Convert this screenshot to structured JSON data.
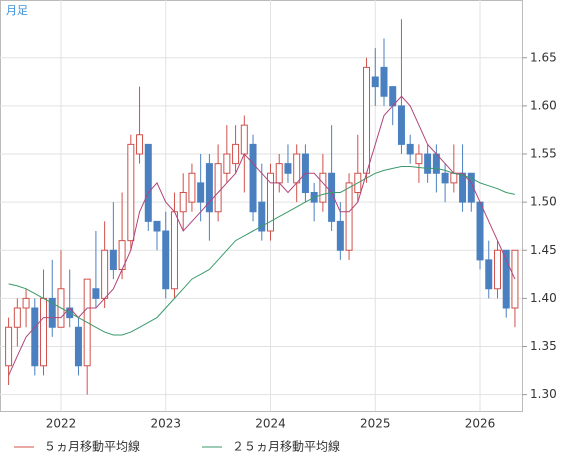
{
  "chart_data": {
    "type": "candlestick",
    "title": "月足",
    "categories": [
      null,
      null,
      null,
      null,
      null,
      null,
      "2022",
      null,
      null,
      null,
      null,
      null,
      null,
      null,
      null,
      null,
      null,
      null,
      "2023",
      null,
      null,
      null,
      null,
      null,
      null,
      null,
      null,
      null,
      null,
      null,
      "2024",
      null,
      null,
      null,
      null,
      null,
      null,
      null,
      null,
      null,
      null,
      null,
      "2025",
      null,
      null,
      null,
      null,
      null,
      null,
      null,
      null,
      null,
      null,
      null,
      "2026",
      null,
      null,
      null,
      null
    ],
    "open": [
      1.33,
      1.37,
      1.39,
      1.39,
      1.33,
      1.4,
      1.37,
      1.39,
      1.37,
      1.33,
      1.41,
      1.4,
      1.45,
      1.43,
      1.46,
      1.55,
      1.56,
      1.48,
      1.47,
      1.41,
      1.49,
      1.5,
      1.52,
      1.54,
      1.49,
      1.53,
      1.54,
      1.55,
      1.56,
      1.5,
      1.47,
      1.52,
      1.54,
      1.52,
      1.55,
      1.51,
      1.5,
      1.53,
      1.48,
      1.45,
      1.51,
      1.53,
      1.63,
      1.64,
      1.62,
      1.6,
      1.56,
      1.54,
      1.55,
      1.55,
      1.53,
      1.52,
      1.53,
      1.53,
      1.5,
      1.44,
      1.41,
      1.45,
      1.39
    ],
    "high": [
      1.38,
      1.4,
      1.41,
      1.4,
      1.43,
      1.44,
      1.45,
      1.43,
      1.38,
      1.42,
      1.47,
      1.48,
      1.5,
      1.51,
      1.57,
      1.62,
      1.56,
      1.48,
      1.49,
      1.51,
      1.53,
      1.54,
      1.55,
      1.55,
      1.56,
      1.58,
      1.58,
      1.59,
      1.57,
      1.54,
      1.54,
      1.55,
      1.56,
      1.56,
      1.56,
      1.52,
      1.55,
      1.58,
      1.5,
      1.53,
      1.57,
      1.65,
      1.66,
      1.67,
      1.62,
      1.69,
      1.57,
      1.56,
      1.56,
      1.56,
      1.54,
      1.56,
      1.56,
      1.53,
      1.5,
      1.46,
      1.46,
      1.45,
      1.45
    ],
    "low": [
      1.31,
      1.35,
      1.37,
      1.32,
      1.32,
      1.36,
      1.37,
      1.37,
      1.32,
      1.3,
      1.39,
      1.39,
      1.42,
      1.42,
      1.45,
      1.54,
      1.47,
      1.45,
      1.4,
      1.4,
      1.47,
      1.49,
      1.48,
      1.46,
      1.48,
      1.52,
      1.53,
      1.51,
      1.48,
      1.46,
      1.46,
      1.51,
      1.52,
      1.5,
      1.5,
      1.48,
      1.49,
      1.47,
      1.44,
      1.44,
      1.5,
      1.52,
      1.6,
      1.6,
      1.58,
      1.55,
      1.54,
      1.52,
      1.52,
      1.51,
      1.5,
      1.51,
      1.49,
      1.49,
      1.43,
      1.4,
      1.4,
      1.38,
      1.37
    ],
    "close": [
      1.37,
      1.39,
      1.4,
      1.33,
      1.4,
      1.37,
      1.41,
      1.38,
      1.33,
      1.42,
      1.4,
      1.45,
      1.43,
      1.46,
      1.56,
      1.57,
      1.48,
      1.47,
      1.41,
      1.49,
      1.51,
      1.53,
      1.5,
      1.49,
      1.54,
      1.55,
      1.56,
      1.58,
      1.49,
      1.47,
      1.53,
      1.54,
      1.53,
      1.55,
      1.51,
      1.5,
      1.53,
      1.48,
      1.45,
      1.52,
      1.53,
      1.64,
      1.62,
      1.61,
      1.6,
      1.56,
      1.55,
      1.55,
      1.53,
      1.53,
      1.52,
      1.53,
      1.5,
      1.5,
      1.44,
      1.41,
      1.45,
      1.39,
      1.45
    ],
    "up_color": "#d0504a",
    "down_color": "#4a80c0",
    "series": [
      {
        "name": "５ヵ月移動平均線",
        "color": "#b0457a",
        "values": [
          1.32,
          1.34,
          1.36,
          1.37,
          1.38,
          1.38,
          1.38,
          1.39,
          1.38,
          1.39,
          1.39,
          1.4,
          1.41,
          1.43,
          1.45,
          1.49,
          1.51,
          1.52,
          1.5,
          1.49,
          1.47,
          1.48,
          1.49,
          1.5,
          1.51,
          1.52,
          1.53,
          1.55,
          1.54,
          1.53,
          1.52,
          1.52,
          1.51,
          1.52,
          1.53,
          1.53,
          1.52,
          1.51,
          1.49,
          1.49,
          1.5,
          1.53,
          1.56,
          1.59,
          1.6,
          1.61,
          1.6,
          1.58,
          1.56,
          1.55,
          1.54,
          1.53,
          1.53,
          1.52,
          1.5,
          1.48,
          1.46,
          1.44,
          1.42
        ]
      },
      {
        "name": "２５ヵ月移動平均線",
        "color": "#3a9a6a",
        "values": [
          1.415,
          1.413,
          1.41,
          1.405,
          1.4,
          1.395,
          1.39,
          1.385,
          1.38,
          1.375,
          1.37,
          1.365,
          1.362,
          1.362,
          1.365,
          1.37,
          1.375,
          1.38,
          1.39,
          1.4,
          1.41,
          1.42,
          1.425,
          1.43,
          1.44,
          1.45,
          1.46,
          1.465,
          1.47,
          1.475,
          1.48,
          1.485,
          1.49,
          1.495,
          1.5,
          1.505,
          1.508,
          1.51,
          1.51,
          1.515,
          1.52,
          1.525,
          1.53,
          1.533,
          1.535,
          1.537,
          1.537,
          1.536,
          1.535,
          1.535,
          1.533,
          1.53,
          1.528,
          1.525,
          1.52,
          1.517,
          1.514,
          1.51,
          1.508
        ]
      }
    ],
    "ylim": [
      1.283,
      1.71
    ],
    "yticks": [
      {
        "value": 1.3,
        "label": "1.30"
      },
      {
        "value": 1.35,
        "label": "1.35"
      },
      {
        "value": 1.4,
        "label": "1.40"
      },
      {
        "value": 1.45,
        "label": "1.45"
      },
      {
        "value": 1.5,
        "label": "1.50"
      },
      {
        "value": 1.55,
        "label": "1.55"
      },
      {
        "value": 1.6,
        "label": "1.60"
      },
      {
        "value": 1.65,
        "label": "1.65"
      }
    ],
    "grid": true
  }
}
